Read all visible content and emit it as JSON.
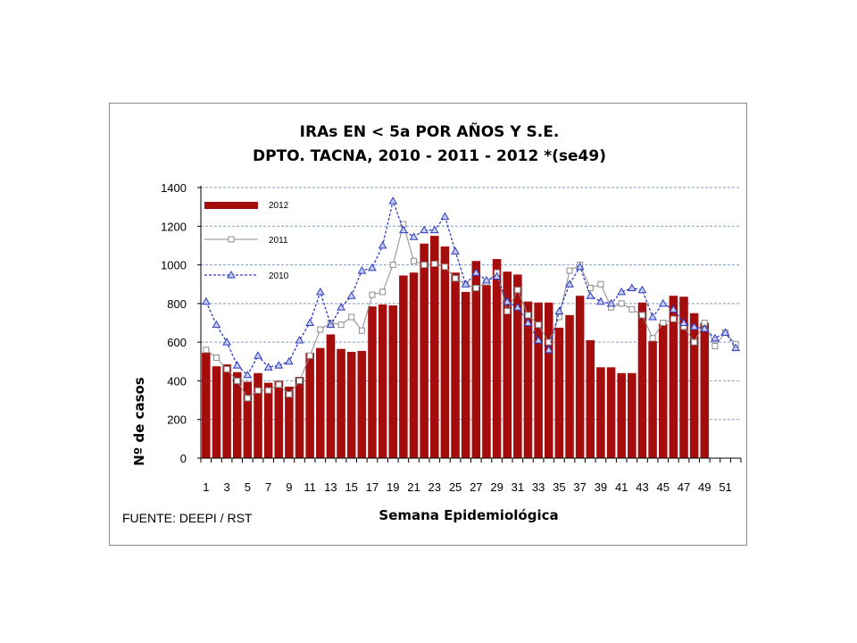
{
  "chart_data": {
    "type": "bar",
    "title_lines": [
      "IRAs  EN < 5a POR AÑOS Y S.E.",
      "DPTO. TACNA, 2010 - 2011 -  2012 *(se49)"
    ],
    "xlabel": "Semana Epidemiológica",
    "ylabel": "Nº de casos",
    "ylim": [
      0,
      1400
    ],
    "y_ticks": [
      0,
      200,
      400,
      600,
      800,
      1000,
      1200,
      1400
    ],
    "x_tick_labels": [
      "1",
      "3",
      "5",
      "7",
      "9",
      "11",
      "13",
      "15",
      "17",
      "19",
      "21",
      "23",
      "25",
      "27",
      "29",
      "31",
      "33",
      "35",
      "37",
      "39",
      "41",
      "43",
      "45",
      "47",
      "49",
      "51"
    ],
    "weeks": [
      1,
      2,
      3,
      4,
      5,
      6,
      7,
      8,
      9,
      10,
      11,
      12,
      13,
      14,
      15,
      16,
      17,
      18,
      19,
      20,
      21,
      22,
      23,
      24,
      25,
      26,
      27,
      28,
      29,
      30,
      31,
      32,
      33,
      34,
      35,
      36,
      37,
      38,
      39,
      40,
      41,
      42,
      43,
      44,
      45,
      46,
      47,
      48,
      49,
      50,
      51,
      52
    ],
    "grid": "horizontal dashed",
    "legend_position": "top-left",
    "colors": {
      "s2012": "#a50d0d",
      "s2011": "#8c8c8c",
      "s2010": "#2e3cc0",
      "grid": "#7f9ec8"
    },
    "series": [
      {
        "name": "2012",
        "kind": "bar",
        "values": [
          545,
          475,
          485,
          445,
          395,
          440,
          390,
          400,
          370,
          420,
          545,
          570,
          640,
          565,
          550,
          555,
          785,
          795,
          790,
          945,
          960,
          1110,
          1150,
          1095,
          960,
          860,
          1020,
          895,
          1030,
          965,
          950,
          810,
          805,
          805,
          675,
          740,
          840,
          610,
          470,
          470,
          440,
          440,
          805,
          605,
          695,
          840,
          835,
          750,
          700
        ]
      },
      {
        "name": "2011",
        "kind": "line",
        "marker": "square",
        "values": [
          560,
          520,
          460,
          400,
          310,
          350,
          350,
          380,
          330,
          400,
          530,
          665,
          700,
          690,
          730,
          660,
          845,
          860,
          1000,
          1210,
          1020,
          1000,
          1005,
          990,
          930,
          900,
          880,
          910,
          960,
          760,
          870,
          740,
          690,
          600,
          730,
          970,
          1000,
          880,
          900,
          780,
          800,
          770,
          740,
          620,
          700,
          720,
          680,
          600,
          700,
          580,
          650,
          590
        ]
      },
      {
        "name": "2010",
        "kind": "line",
        "marker": "triangle",
        "values": [
          810,
          690,
          600,
          480,
          430,
          530,
          470,
          480,
          500,
          610,
          700,
          860,
          690,
          780,
          840,
          970,
          985,
          1100,
          1330,
          1180,
          1145,
          1180,
          1180,
          1250,
          1070,
          900,
          960,
          920,
          940,
          810,
          780,
          700,
          610,
          560,
          760,
          900,
          990,
          840,
          810,
          800,
          860,
          880,
          870,
          730,
          800,
          770,
          700,
          680,
          670,
          620,
          650,
          570
        ]
      }
    ]
  },
  "source": "FUENTE: DEEPI / RST"
}
